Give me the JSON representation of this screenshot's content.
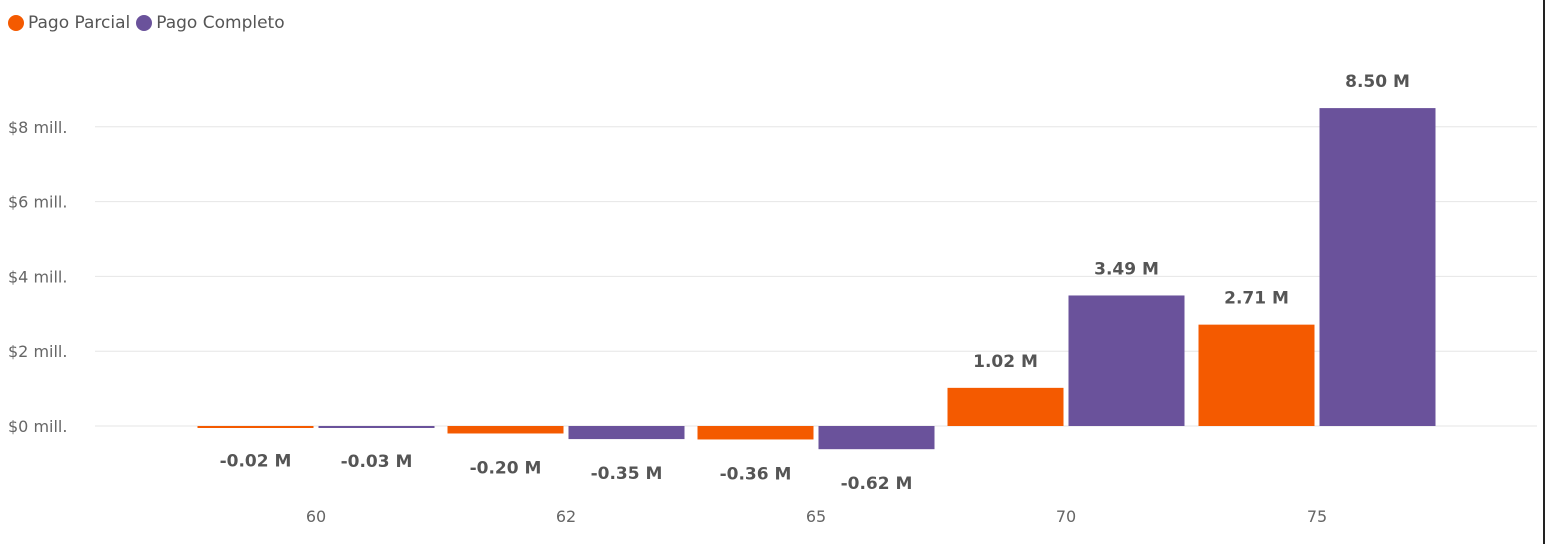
{
  "chart_data": {
    "type": "bar",
    "categories": [
      "60",
      "62",
      "65",
      "70",
      "75"
    ],
    "series": [
      {
        "name": "Pago Parcial",
        "color": "#F45A00",
        "values": [
          -0.02,
          -0.2,
          -0.36,
          1.02,
          2.71
        ],
        "labels": [
          "-0.02 M",
          "-0.20 M",
          "-0.36 M",
          "1.02 M",
          "2.71 M"
        ]
      },
      {
        "name": "Pago Completo",
        "color": "#6A529B",
        "values": [
          -0.03,
          -0.35,
          -0.62,
          3.49,
          8.5
        ],
        "labels": [
          "-0.03 M",
          "-0.35 M",
          "-0.62 M",
          "3.49 M",
          "8.50 M"
        ]
      }
    ],
    "y_ticks": [
      0,
      2,
      4,
      6,
      8
    ],
    "y_tick_labels": [
      "$0 mill.",
      "$2 mill.",
      "$4 mill.",
      "$6 mill.",
      "$8 mill."
    ],
    "ylim": [
      -1.2,
      9.0
    ],
    "grid": true,
    "legend_position": "top-left"
  }
}
